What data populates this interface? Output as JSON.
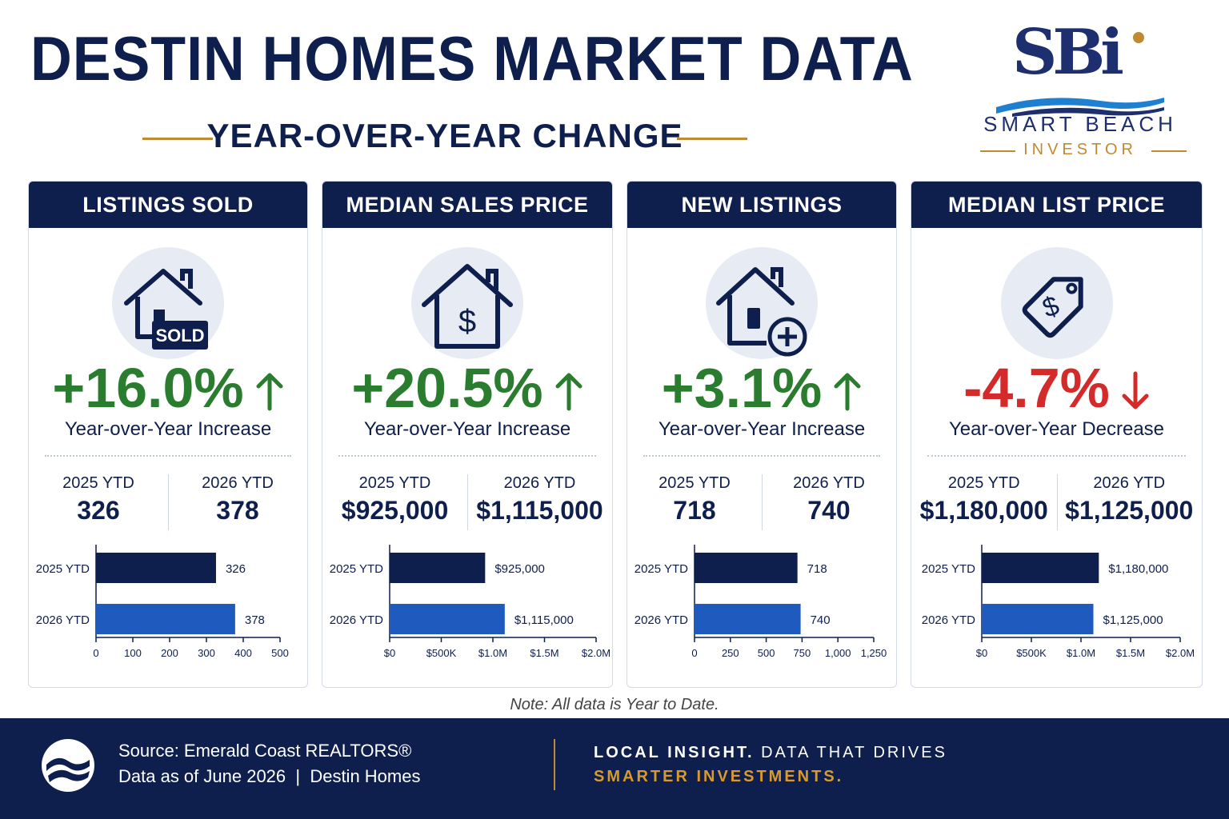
{
  "header": {
    "title": "DESTIN HOMES MARKET DATA",
    "subtitle": "YEAR-OVER-YEAR CHANGE"
  },
  "logo": {
    "mark": "SBi",
    "name": "SMART BEACH",
    "sub": "INVESTOR"
  },
  "colors": {
    "navy": "#0f1f4d",
    "blue": "#1f5bbf",
    "green": "#2a7d2e",
    "red": "#d42a2a",
    "gold": "#c08a32"
  },
  "cards": [
    {
      "title": "LISTINGS SOLD",
      "icon": "house-sold-icon",
      "icon_badge": "SOLD",
      "change": "+16.0%",
      "direction": "up",
      "change_label": "Year-over-Year Increase",
      "ytd_2025_label": "2025 YTD",
      "ytd_2025_value": "326",
      "ytd_2026_label": "2026 YTD",
      "ytd_2026_value": "378"
    },
    {
      "title": "MEDIAN SALES PRICE",
      "icon": "house-dollar-icon",
      "change": "+20.5%",
      "direction": "up",
      "change_label": "Year-over-Year Increase",
      "ytd_2025_label": "2025 YTD",
      "ytd_2025_value": "$925,000",
      "ytd_2026_label": "2026 YTD",
      "ytd_2026_value": "$1,115,000"
    },
    {
      "title": "NEW LISTINGS",
      "icon": "house-plus-icon",
      "change": "+3.1%",
      "direction": "up",
      "change_label": "Year-over-Year Increase",
      "ytd_2025_label": "2025 YTD",
      "ytd_2025_value": "718",
      "ytd_2026_label": "2026 YTD",
      "ytd_2026_value": "740"
    },
    {
      "title": "MEDIAN LIST PRICE",
      "icon": "price-tag-icon",
      "change": "-4.7%",
      "direction": "down",
      "change_label": "Year-over-Year Decrease",
      "ytd_2025_label": "2025 YTD",
      "ytd_2025_value": "$1,180,000",
      "ytd_2026_label": "2026 YTD",
      "ytd_2026_value": "$1,125,000"
    }
  ],
  "chart_data": [
    {
      "type": "bar",
      "orientation": "horizontal",
      "categories": [
        "2025 YTD",
        "2026 YTD"
      ],
      "values": [
        326,
        378
      ],
      "value_labels": [
        "326",
        "378"
      ],
      "xlim": [
        0,
        500
      ],
      "ticks": [
        0,
        100,
        200,
        300,
        400,
        500
      ],
      "tick_labels": [
        "0",
        "100",
        "200",
        "300",
        "400",
        "500"
      ]
    },
    {
      "type": "bar",
      "orientation": "horizontal",
      "categories": [
        "2025 YTD",
        "2026 YTD"
      ],
      "values": [
        925000,
        1115000
      ],
      "value_labels": [
        "$925,000",
        "$1,115,000"
      ],
      "xlim": [
        0,
        2000000
      ],
      "ticks": [
        0,
        500000,
        1000000,
        1500000,
        2000000
      ],
      "tick_labels": [
        "$0",
        "$500K",
        "$1.0M",
        "$1.5M",
        "$2.0M"
      ]
    },
    {
      "type": "bar",
      "orientation": "horizontal",
      "categories": [
        "2025 YTD",
        "2026 YTD"
      ],
      "values": [
        718,
        740
      ],
      "value_labels": [
        "718",
        "740"
      ],
      "xlim": [
        0,
        1250
      ],
      "ticks": [
        0,
        250,
        500,
        750,
        1000,
        1250
      ],
      "tick_labels": [
        "0",
        "250",
        "500",
        "750",
        "1,000",
        "1,250"
      ]
    },
    {
      "type": "bar",
      "orientation": "horizontal",
      "categories": [
        "2025 YTD",
        "2026 YTD"
      ],
      "values": [
        1180000,
        1125000
      ],
      "value_labels": [
        "$1,180,000",
        "$1,125,000"
      ],
      "xlim": [
        0,
        2000000
      ],
      "ticks": [
        0,
        500000,
        1000000,
        1500000,
        2000000
      ],
      "tick_labels": [
        "$0",
        "$500K",
        "$1.0M",
        "$1.5M",
        "$2.0M"
      ]
    }
  ],
  "note": "Note: All data is Year to Date.",
  "footer": {
    "source": "Source: Emerald Coast REALTORS®",
    "date": "Data as of June 2026  |  Destin Homes",
    "tagline_bold": "LOCAL INSIGHT.",
    "tagline_rest": " DATA THAT DRIVES",
    "tagline_2": "SMARTER INVESTMENTS."
  }
}
